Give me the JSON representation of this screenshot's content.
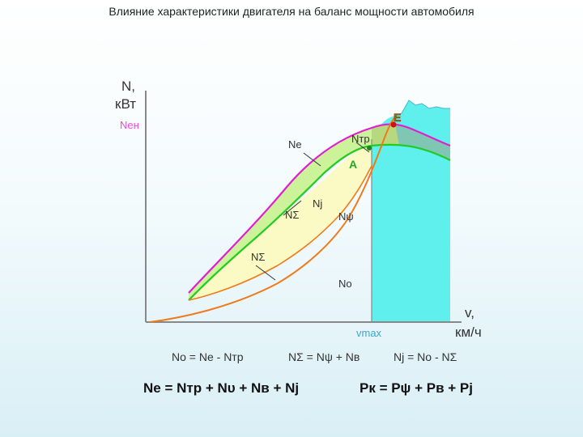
{
  "title": "Влияние характеристики двигателя на баланс мощности автомобиля",
  "axes": {
    "y_label_1": "N,",
    "y_label_2": "кВт",
    "x_label_1": "v,",
    "x_label_2": "км/ч",
    "vmax": "vmax"
  },
  "labels": {
    "n_en": "Nен",
    "n_e": "Ne",
    "n_tr": "Nтр",
    "n_sigma_a": "NΣ",
    "n_sigma_b": "NΣ",
    "n_j": "Nj",
    "n_psi": "Nψ",
    "n_o": "No",
    "point_e": "Е",
    "point_a": "А"
  },
  "formulas": {
    "f1": "No = Nе - Nтр",
    "f2": "NΣ = Nψ + Nв",
    "f3": "Nj = No - NΣ",
    "f4": "Nе = Nтр + Nυ + Nв + Nj",
    "f5": "Pк = Pψ + Pв + Pj"
  },
  "colors": {
    "n_en_curve": "#e020d0",
    "n_e_curve": "#22cc22",
    "n_sigma_curve": "#f07a18",
    "fill_green": "#ccf29a",
    "fill_yellow": "#fbfac4",
    "fill_cyan": "#5ff0ee",
    "fill_teal": "#7fc6b5",
    "fill_olive": "#b8d880",
    "label_green": "#22aa22",
    "label_red": "#dd1111",
    "label_magenta": "#ee44dd"
  }
}
